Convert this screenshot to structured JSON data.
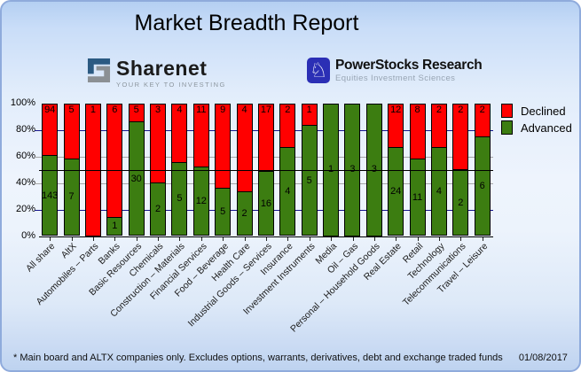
{
  "title": "Market Breadth Report",
  "logos": {
    "sharenet": {
      "name": "Sharenet",
      "tagline": "YOUR KEY TO INVESTING"
    },
    "powerstocks": {
      "name": "PowerStocks Research",
      "tagline": "Equities Investment Sciences"
    }
  },
  "colors": {
    "declined": "#ff0000",
    "advanced": "#3c7d11",
    "grid_major": "#16168c",
    "grid_minor": "#a6a6a6",
    "fifty_line": "#000000",
    "panel_border": "#8fabdc",
    "powerstocks_blue": "#2b2fb5",
    "sharenet_navy": "#2b5a82",
    "sharenet_gray": "#8b9094"
  },
  "footer": {
    "note": "* Main board and ALTX companies only. Excludes options, warrants, derivatives, debt and exchange traded funds",
    "date": "01/08/2017"
  },
  "chart_data": {
    "type": "bar",
    "stacked": true,
    "normalized": "percent",
    "title": "Market Breadth Report",
    "categories": [
      "All share",
      "AltX",
      "Automobiles – Parts",
      "Banks",
      "Basic Resources",
      "Chemicals",
      "Construction – Materials",
      "Financial Services",
      "Food – Beverage",
      "Health Care",
      "Industrial Goods – Services",
      "Insurance",
      "Investment Instruments",
      "Media",
      "Oil – Gas",
      "Personal – Household Goods",
      "Real Estate",
      "Retail",
      "Technology",
      "Telecommunications",
      "Travel – Leisure"
    ],
    "series": [
      {
        "name": "Declined",
        "color": "#ff0000",
        "values": [
          94,
          5,
          1,
          6,
          5,
          3,
          4,
          11,
          9,
          4,
          17,
          2,
          1,
          0,
          0,
          0,
          12,
          8,
          2,
          2,
          2
        ]
      },
      {
        "name": "Advanced",
        "color": "#3c7d11",
        "values": [
          143,
          7,
          0,
          1,
          30,
          2,
          5,
          12,
          5,
          2,
          16,
          4,
          5,
          1,
          3,
          3,
          24,
          11,
          4,
          2,
          6
        ]
      }
    ],
    "y_ticks": [
      "0%",
      "20%",
      "40%",
      "60%",
      "80%",
      "100%"
    ],
    "ylim": [
      0,
      100
    ],
    "grid": true,
    "legend_position": "right"
  }
}
